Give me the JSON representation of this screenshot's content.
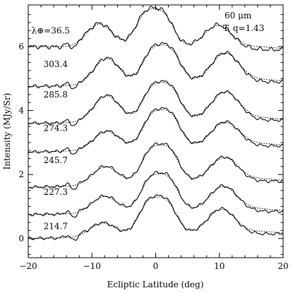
{
  "chart_data": {
    "type": "line",
    "title": "",
    "xlabel": "Ecliptic Latitude (deg)",
    "ylabel": "Intensity (MJy/Sr)",
    "xlim": [
      -20,
      20
    ],
    "ylim": [
      -0.6,
      7.3
    ],
    "xticks": [
      -20,
      -10,
      0,
      10,
      20
    ],
    "yticks": [
      0,
      2,
      4,
      6
    ],
    "xtick_labels": [
      "−20",
      "−10",
      "0",
      "10",
      "20"
    ],
    "ytick_labels": [
      "0",
      "2",
      "4",
      "6"
    ],
    "grid": false,
    "annotations": {
      "wavelength": "60 μm",
      "model": "T, q=1.43"
    },
    "line_styles": {
      "observed": "solid",
      "model": "dotted"
    },
    "series": [
      {
        "label": "214.7",
        "label_prefix": "",
        "label_pos": [
          -17.6,
          0.38
        ],
        "offset": 0.0,
        "shift": 0.0,
        "left": 0.45,
        "right": 0.82,
        "rise": 0.15,
        "noise": 0.05
      },
      {
        "label": "227.3",
        "label_prefix": "",
        "label_pos": [
          -17.6,
          1.45
        ],
        "offset": 0.75,
        "shift": 0.3,
        "left": 0.55,
        "right": 0.82,
        "rise": 0.1,
        "noise": 0.05
      },
      {
        "label": "245.7",
        "label_prefix": "",
        "label_pos": [
          -17.6,
          2.45
        ],
        "offset": 1.6,
        "shift": 0.4,
        "left": 0.6,
        "right": 0.8,
        "rise": 0.2,
        "noise": 0.05
      },
      {
        "label": "274.3",
        "label_prefix": "",
        "label_pos": [
          -17.6,
          3.45
        ],
        "offset": 2.7,
        "shift": 0.6,
        "left": 0.6,
        "right": 0.8,
        "rise": 0.2,
        "noise": 0.05
      },
      {
        "label": "285.8",
        "label_prefix": "",
        "label_pos": [
          -17.6,
          4.5
        ],
        "offset": 3.6,
        "shift": 0.6,
        "left": 0.85,
        "right": 0.92,
        "rise": 0.1,
        "noise": 0.05
      },
      {
        "label": "303.4",
        "label_prefix": "",
        "label_pos": [
          -17.6,
          5.45
        ],
        "offset": 4.75,
        "shift": 0.6,
        "left": 0.85,
        "right": 0.95,
        "rise": 0.15,
        "noise": 0.06
      },
      {
        "label": "36.5",
        "label_prefix": "λ⊕=",
        "label_pos": [
          -19.5,
          6.5
        ],
        "offset": 6.0,
        "shift": -0.5,
        "left": 0.75,
        "right": 0.75,
        "rise": -0.1,
        "noise": 0.07
      }
    ]
  }
}
